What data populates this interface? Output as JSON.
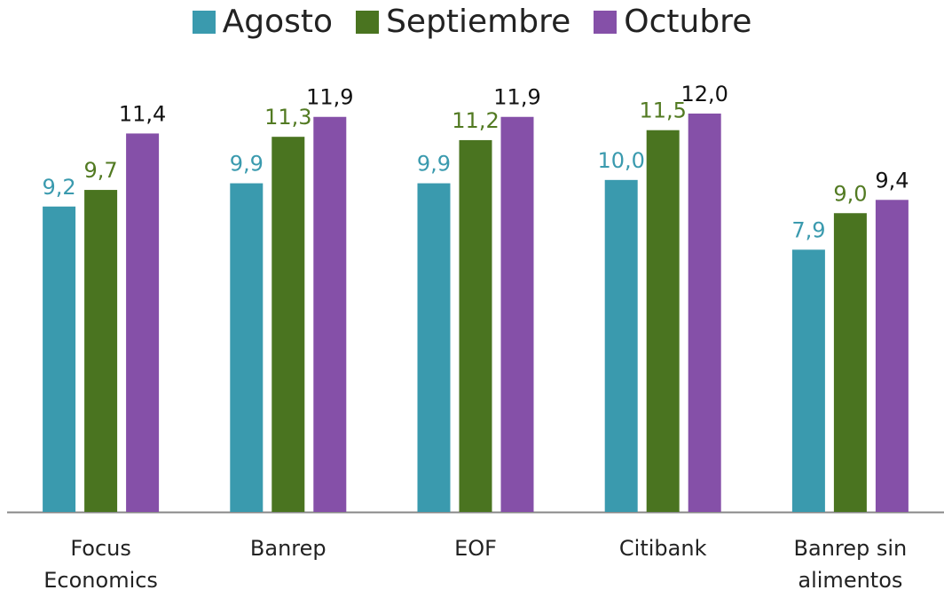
{
  "chart_data": {
    "type": "bar",
    "categories": [
      "Focus Economics",
      "Banrep",
      "EOF",
      "Citibank",
      "Banrep sin alimentos"
    ],
    "series": [
      {
        "name": "Agosto",
        "color": "#3a9aae",
        "label_color": "#3a9aae",
        "values": [
          9.2,
          9.9,
          9.9,
          10.0,
          7.9
        ],
        "value_labels": [
          "9,2",
          "9,9",
          "9,9",
          "10,0",
          "7,9"
        ]
      },
      {
        "name": "Septiembre",
        "color": "#4a7420",
        "label_color": "#527a22",
        "values": [
          9.7,
          11.3,
          11.2,
          11.5,
          9.0
        ],
        "value_labels": [
          "9,7",
          "11,3",
          "11,2",
          "11,5",
          "9,0"
        ]
      },
      {
        "name": "Octubre",
        "color": "#8550a8",
        "label_color": "#111111",
        "values": [
          11.4,
          11.9,
          11.9,
          12.0,
          9.4
        ],
        "value_labels": [
          "11,4",
          "11,9",
          "11,9",
          "12,0",
          "9,4"
        ]
      }
    ],
    "ylim": [
      0,
      12
    ],
    "legend": "top"
  }
}
